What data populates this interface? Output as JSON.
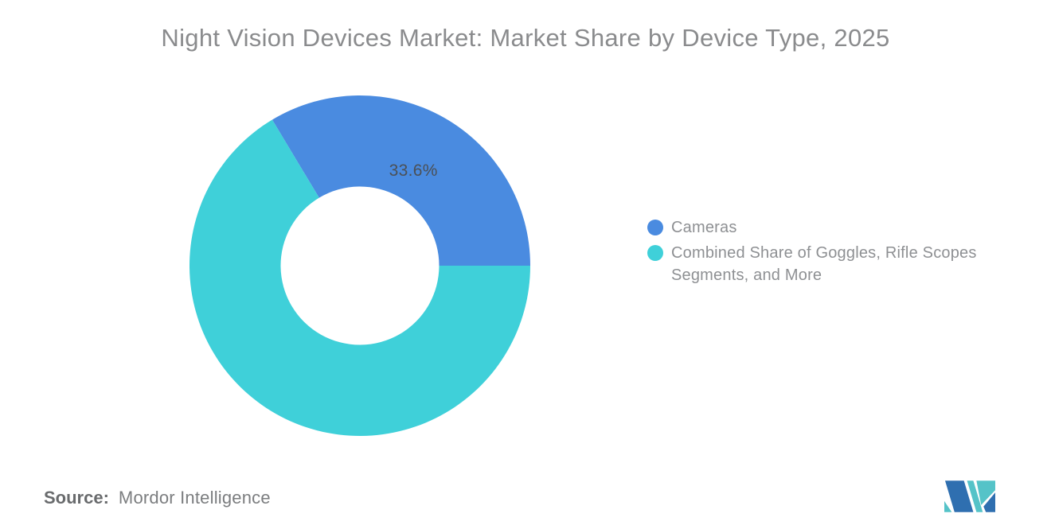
{
  "title": "Night Vision Devices Market: Market Share by Device Type, 2025",
  "chart_data": {
    "type": "pie",
    "subtype": "donut",
    "title": "Night Vision Devices Market: Market Share by Device Type, 2025",
    "categories": [
      "Cameras",
      "Combined Share of Goggles, Rifle Scopes Segments, and More"
    ],
    "values": [
      33.6,
      66.4
    ],
    "colors": [
      "#4A8BE0",
      "#3FD0D9"
    ],
    "data_labels": [
      "33.6%",
      ""
    ],
    "start_angle_deg": -30.96,
    "inner_radius_ratio": 0.465,
    "legend_position": "right",
    "grid": false
  },
  "legend": {
    "items": [
      {
        "label": "Cameras",
        "color": "#4A8BE0"
      },
      {
        "label": "Combined Share of Goggles, Rifle Scopes Segments, and More",
        "color": "#3FD0D9"
      }
    ]
  },
  "source": {
    "prefix": "Source:",
    "value": "Mordor Intelligence"
  },
  "logo": {
    "name": "mordor-intelligence-logo",
    "colors": {
      "blue": "#2F6FB0",
      "teal": "#55C3C8"
    }
  }
}
